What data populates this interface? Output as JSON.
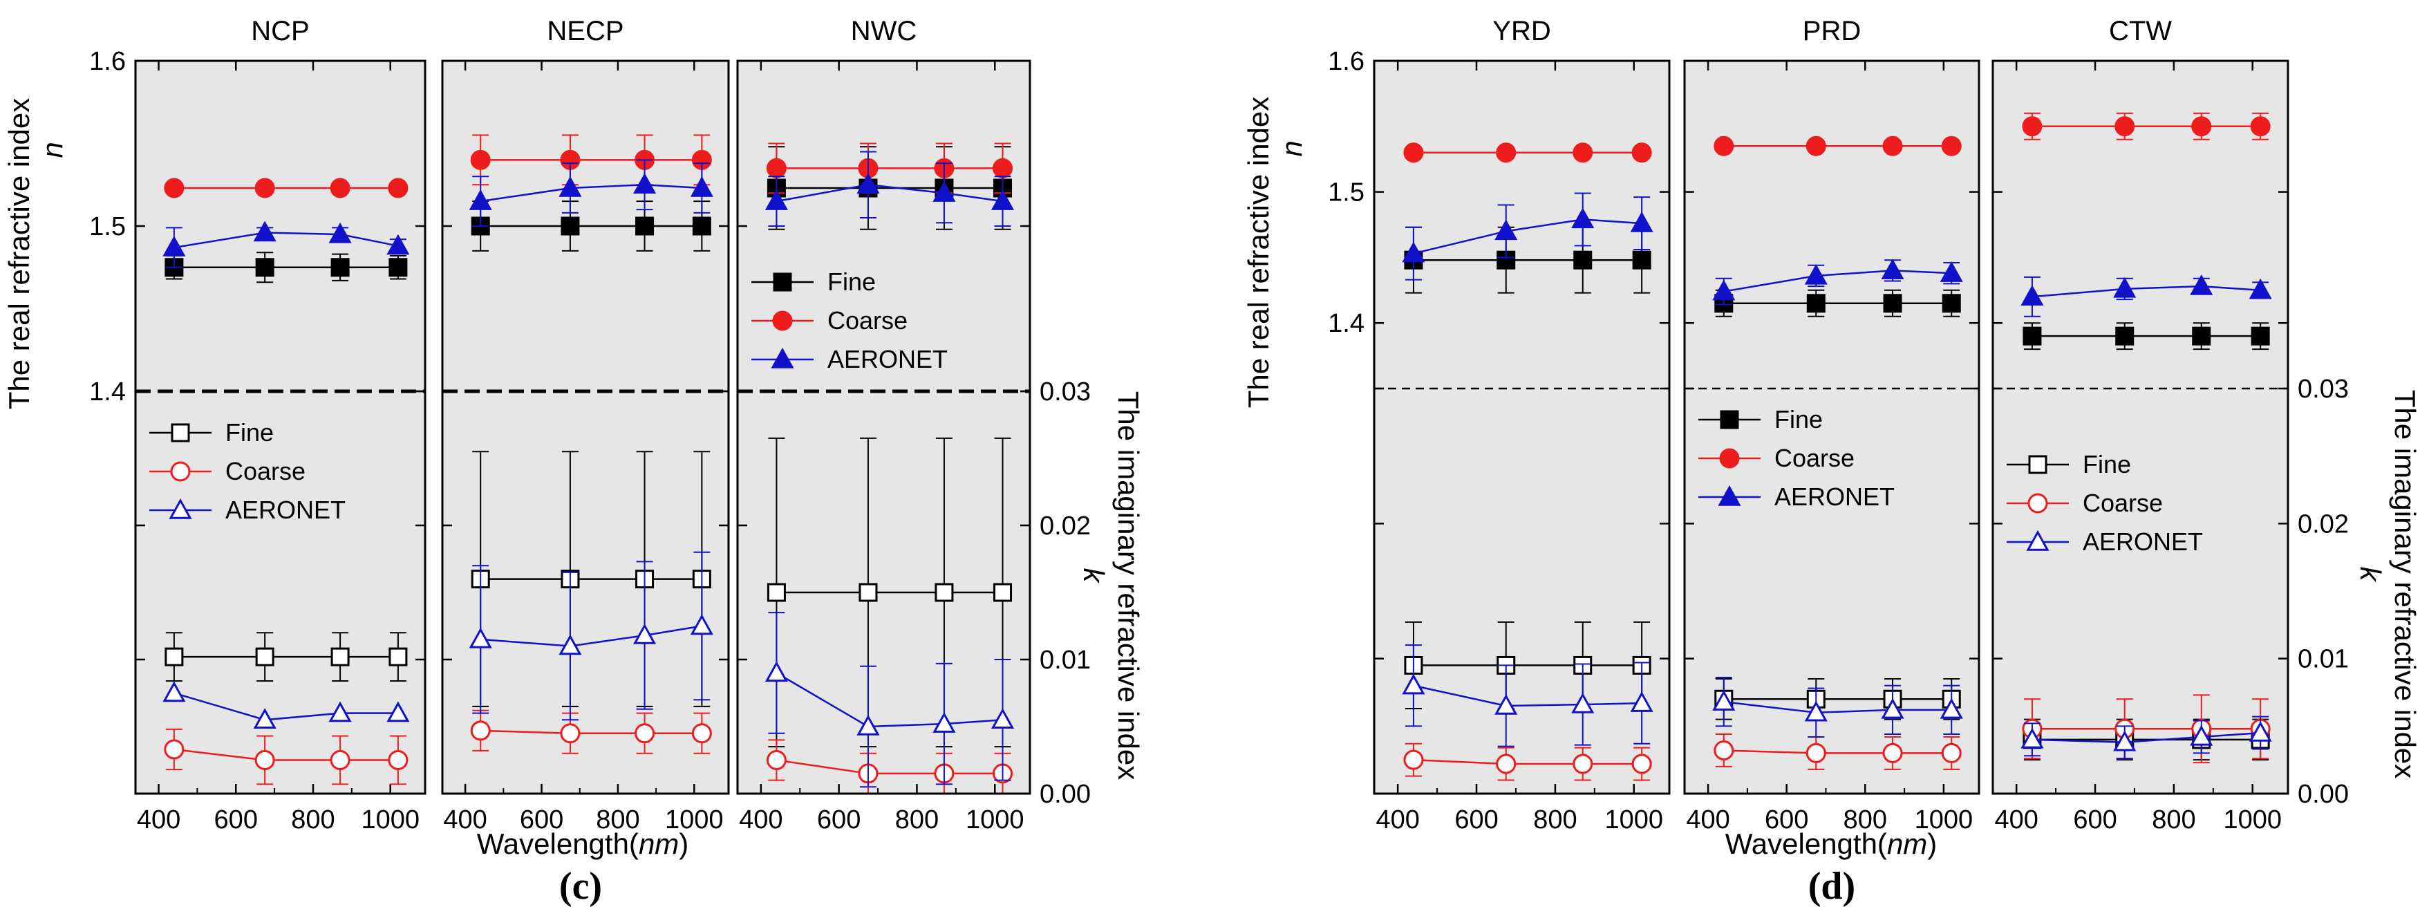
{
  "figure": {
    "ylabel_left": "The real refractive index",
    "ylabel_left_var": "n",
    "ylabel_right": "The imaginary refractive index",
    "ylabel_right_var": "k",
    "xlabel": "Wavelength(",
    "xlabel_unit": "nm",
    "xlabel_close": ")",
    "legend_labels": [
      "Fine",
      "Coarse",
      "AERONET"
    ]
  },
  "colors": {
    "fine": "#000000",
    "coarse": "#ee1c1c",
    "aeronet": "#1111cc",
    "panel_bg": "#e6e6e6"
  },
  "chart_data": [
    {
      "type": "scatter",
      "caption": "(c)",
      "xlabel": "Wavelength(nm)",
      "xlim": [
        340,
        1090
      ],
      "xticks": [
        400,
        600,
        800,
        1000
      ],
      "x": [
        440,
        675,
        870,
        1020
      ],
      "upper": {
        "ylabel": "The real refractive index n",
        "ylim": [
          1.4,
          1.6
        ],
        "yticks": [
          1.4,
          1.5,
          1.6
        ],
        "ytick_labels": [
          "1.4",
          "1.5",
          "1.6"
        ]
      },
      "lower": {
        "ylabel": "The imaginary refractive index k",
        "ylim": [
          0.0,
          0.03
        ],
        "yticks": [
          0.0,
          0.01,
          0.02,
          0.03
        ],
        "ytick_labels": [
          "0.00",
          "0.01",
          "0.02",
          "0.03"
        ]
      },
      "panels": [
        {
          "title": "NCP",
          "n": [
            {
              "name": "Fine",
              "values": [
                1.475,
                1.475,
                1.475,
                1.475
              ],
              "err": [
                0.007,
                0.009,
                0.008,
                0.007
              ]
            },
            {
              "name": "Coarse",
              "values": [
                1.523,
                1.523,
                1.523,
                1.523
              ],
              "err": [
                0,
                0,
                0,
                0
              ]
            },
            {
              "name": "AERONET",
              "values": [
                1.487,
                1.496,
                1.495,
                1.488
              ],
              "err": [
                0.012,
                0.003,
                0.004,
                0.004
              ]
            }
          ],
          "k": [
            {
              "name": "Fine",
              "values": [
                0.0102,
                0.0102,
                0.0102,
                0.0102
              ],
              "err": [
                0.0018,
                0.0018,
                0.0018,
                0.0018
              ]
            },
            {
              "name": "Coarse",
              "values": [
                0.0033,
                0.0025,
                0.0025,
                0.0025
              ],
              "err": [
                0.0015,
                0.0018,
                0.0018,
                0.0018
              ]
            },
            {
              "name": "AERONET",
              "values": [
                0.0075,
                0.0055,
                0.006,
                0.006
              ],
              "err": [
                0,
                0,
                0,
                0
              ]
            }
          ]
        },
        {
          "title": "NECP",
          "n": [
            {
              "name": "Fine",
              "values": [
                1.5,
                1.5,
                1.5,
                1.5
              ],
              "err": [
                0.015,
                0.015,
                0.015,
                0.015
              ]
            },
            {
              "name": "Coarse",
              "values": [
                1.54,
                1.54,
                1.54,
                1.54
              ],
              "err": [
                0.015,
                0.015,
                0.015,
                0.015
              ]
            },
            {
              "name": "AERONET",
              "values": [
                1.515,
                1.523,
                1.525,
                1.523
              ],
              "err": [
                0.015,
                0.015,
                0.015,
                0.015
              ]
            }
          ],
          "k": [
            {
              "name": "Fine",
              "values": [
                0.016,
                0.016,
                0.016,
                0.016
              ],
              "err": [
                0.0095,
                0.0095,
                0.0095,
                0.0095
              ]
            },
            {
              "name": "Coarse",
              "values": [
                0.0047,
                0.0045,
                0.0045,
                0.0045
              ],
              "err": [
                0.0015,
                0.0015,
                0.0015,
                0.0015
              ]
            },
            {
              "name": "AERONET",
              "values": [
                0.0115,
                0.011,
                0.0118,
                0.0125
              ],
              "err": [
                0.0055,
                0.0055,
                0.0055,
                0.0055
              ]
            }
          ]
        },
        {
          "title": "NWC",
          "n": [
            {
              "name": "Fine",
              "values": [
                1.523,
                1.523,
                1.523,
                1.523
              ],
              "err": [
                0.025,
                0.025,
                0.025,
                0.025
              ]
            },
            {
              "name": "Coarse",
              "values": [
                1.535,
                1.535,
                1.535,
                1.535
              ],
              "err": [
                0.015,
                0.015,
                0.015,
                0.015
              ]
            },
            {
              "name": "AERONET",
              "values": [
                1.515,
                1.525,
                1.52,
                1.515
              ],
              "err": [
                0.015,
                0.02,
                0.018,
                0.015
              ]
            }
          ],
          "k": [
            {
              "name": "Fine",
              "values": [
                0.015,
                0.015,
                0.015,
                0.015
              ],
              "err": [
                0.0115,
                0.0115,
                0.0115,
                0.0115
              ]
            },
            {
              "name": "Coarse",
              "values": [
                0.0025,
                0.0015,
                0.0015,
                0.0015
              ],
              "err": [
                0.0015,
                0.0015,
                0.0015,
                0.0015
              ]
            },
            {
              "name": "AERONET",
              "values": [
                0.009,
                0.005,
                0.0052,
                0.0055
              ],
              "err": [
                0.0045,
                0.0045,
                0.0045,
                0.0045
              ]
            }
          ]
        }
      ],
      "legend_upper": {
        "panel": 2,
        "style": "filled"
      },
      "legend_lower": {
        "panel": 0,
        "style": "open"
      }
    },
    {
      "type": "scatter",
      "caption": "(d)",
      "xlabel": "Wavelength(nm)",
      "xlim": [
        340,
        1090
      ],
      "xticks": [
        400,
        600,
        800,
        1000
      ],
      "x": [
        440,
        675,
        870,
        1020
      ],
      "upper": {
        "ylabel": "The real refractive index n",
        "ylim": [
          1.35,
          1.6
        ],
        "yticks": [
          1.4,
          1.5,
          1.6
        ],
        "ytick_labels": [
          "1.4",
          "1.5",
          "1.6"
        ]
      },
      "lower": {
        "ylabel": "The imaginary refractive index k",
        "ylim": [
          0.0,
          0.03
        ],
        "yticks": [
          0.0,
          0.01,
          0.02,
          0.03
        ],
        "ytick_labels": [
          "0.00",
          "0.01",
          "0.02",
          "0.03"
        ]
      },
      "panels": [
        {
          "title": "YRD",
          "n": [
            {
              "name": "Fine",
              "values": [
                1.448,
                1.448,
                1.448,
                1.448
              ],
              "err": [
                0.025,
                0.025,
                0.025,
                0.025
              ]
            },
            {
              "name": "Coarse",
              "values": [
                1.53,
                1.53,
                1.53,
                1.53
              ],
              "err": [
                0,
                0,
                0,
                0
              ]
            },
            {
              "name": "AERONET",
              "values": [
                1.453,
                1.47,
                1.479,
                1.476
              ],
              "err": [
                0.02,
                0.02,
                0.02,
                0.02
              ]
            }
          ],
          "k": [
            {
              "name": "Fine",
              "values": [
                0.0095,
                0.0095,
                0.0095,
                0.0095
              ],
              "err": [
                0.0032,
                0.0032,
                0.0032,
                0.0032
              ]
            },
            {
              "name": "Coarse",
              "values": [
                0.0025,
                0.0022,
                0.0022,
                0.0022
              ],
              "err": [
                0.0012,
                0.0012,
                0.0012,
                0.0012
              ]
            },
            {
              "name": "AERONET",
              "values": [
                0.008,
                0.0065,
                0.0066,
                0.0067
              ],
              "err": [
                0.003,
                0.003,
                0.003,
                0.003
              ]
            }
          ]
        },
        {
          "title": "PRD",
          "n": [
            {
              "name": "Fine",
              "values": [
                1.415,
                1.415,
                1.415,
                1.415
              ],
              "err": [
                0.01,
                0.01,
                0.01,
                0.01
              ]
            },
            {
              "name": "Coarse",
              "values": [
                1.535,
                1.535,
                1.535,
                1.535
              ],
              "err": [
                0,
                0,
                0,
                0
              ]
            },
            {
              "name": "AERONET",
              "values": [
                1.424,
                1.436,
                1.44,
                1.438
              ],
              "err": [
                0.01,
                0.008,
                0.008,
                0.008
              ]
            }
          ],
          "k": [
            {
              "name": "Fine",
              "values": [
                0.007,
                0.007,
                0.007,
                0.007
              ],
              "err": [
                0.0015,
                0.0015,
                0.0015,
                0.0015
              ]
            },
            {
              "name": "Coarse",
              "values": [
                0.0032,
                0.003,
                0.003,
                0.003
              ],
              "err": [
                0.0012,
                0.0012,
                0.0012,
                0.0012
              ]
            },
            {
              "name": "AERONET",
              "values": [
                0.0068,
                0.006,
                0.0062,
                0.0062
              ],
              "err": [
                0.0018,
                0.0018,
                0.0018,
                0.0018
              ]
            }
          ]
        },
        {
          "title": "CTW",
          "n": [
            {
              "name": "Fine",
              "values": [
                1.39,
                1.39,
                1.39,
                1.39
              ],
              "err": [
                0.01,
                0.01,
                0.01,
                0.01
              ]
            },
            {
              "name": "Coarse",
              "values": [
                1.55,
                1.55,
                1.55,
                1.55
              ],
              "err": [
                0.01,
                0.01,
                0.01,
                0.01
              ]
            },
            {
              "name": "AERONET",
              "values": [
                1.42,
                1.426,
                1.428,
                1.425
              ],
              "err": [
                0.015,
                0.008,
                0.006,
                0.006
              ]
            }
          ],
          "k": [
            {
              "name": "Fine",
              "values": [
                0.004,
                0.004,
                0.004,
                0.004
              ],
              "err": [
                0.0015,
                0.0015,
                0.0015,
                0.0015
              ]
            },
            {
              "name": "Coarse",
              "values": [
                0.0048,
                0.0048,
                0.0048,
                0.0048
              ],
              "err": [
                0.0022,
                0.0022,
                0.0025,
                0.0022
              ]
            },
            {
              "name": "AERONET",
              "values": [
                0.004,
                0.0038,
                0.0042,
                0.0045
              ],
              "err": [
                0.0012,
                0.0012,
                0.0012,
                0.0012
              ]
            }
          ]
        }
      ],
      "legend_upper": {
        "panel": 1,
        "style": "filled"
      },
      "legend_lower": {
        "panel": 2,
        "style": "open"
      }
    }
  ]
}
